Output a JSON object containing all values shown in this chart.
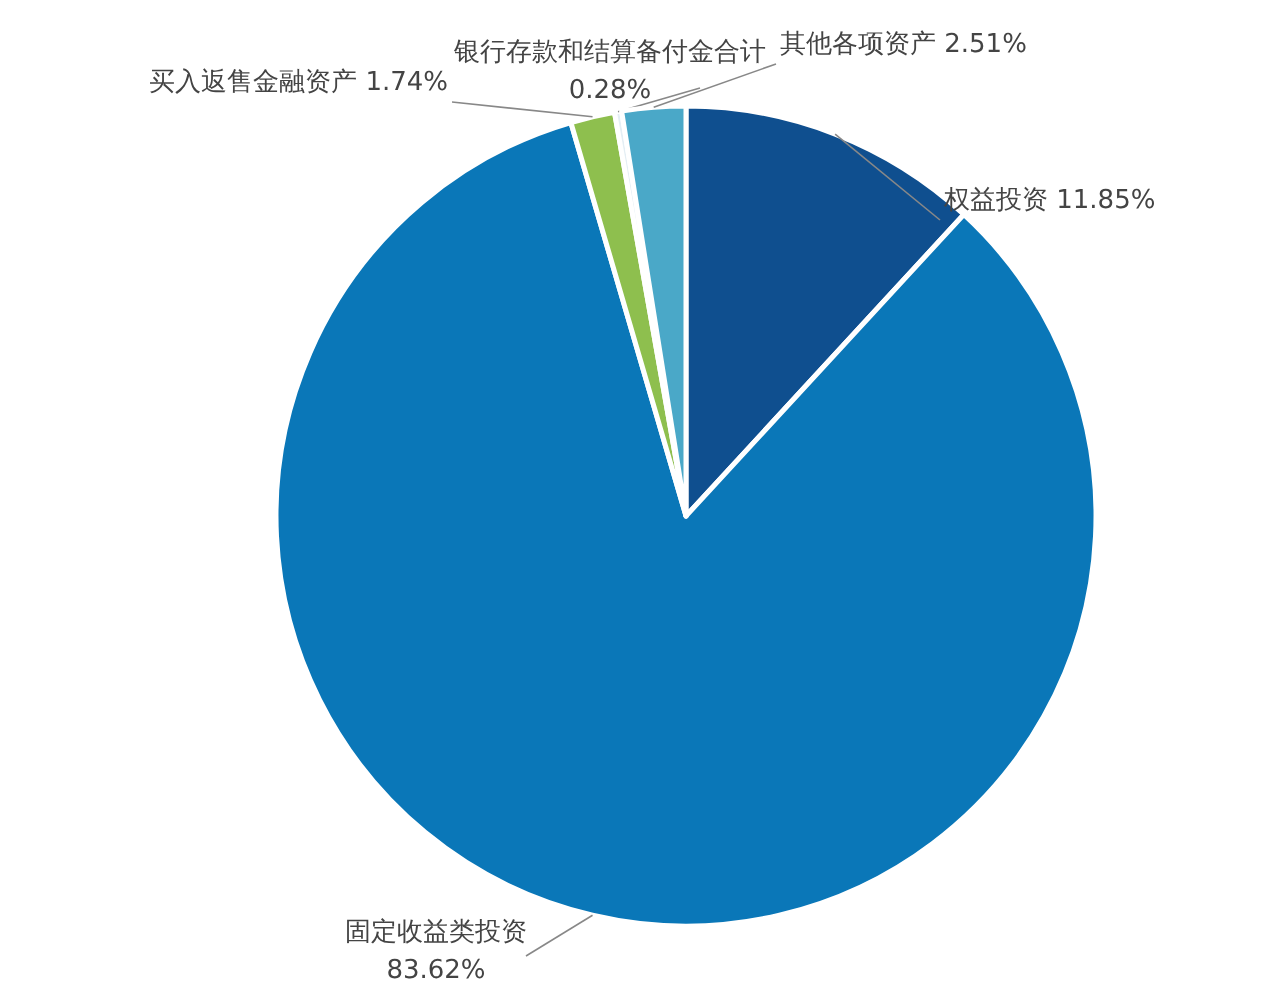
{
  "chart_data": {
    "type": "pie",
    "categories": [
      "权益投资",
      "固定收益类投资",
      "买入返售金融资产",
      "银行存款和结算备付金合计",
      "其他各项资产"
    ],
    "values": [
      11.85,
      83.62,
      1.74,
      0.28,
      2.51
    ],
    "colors": [
      "#0f4f8f",
      "#0a77b8",
      "#8ebf4e",
      "#e4eef4",
      "#4aa8c8"
    ],
    "value_labels": [
      "11.85%",
      "83.62%",
      "1.74%",
      "0.28%",
      "2.51%"
    ]
  }
}
